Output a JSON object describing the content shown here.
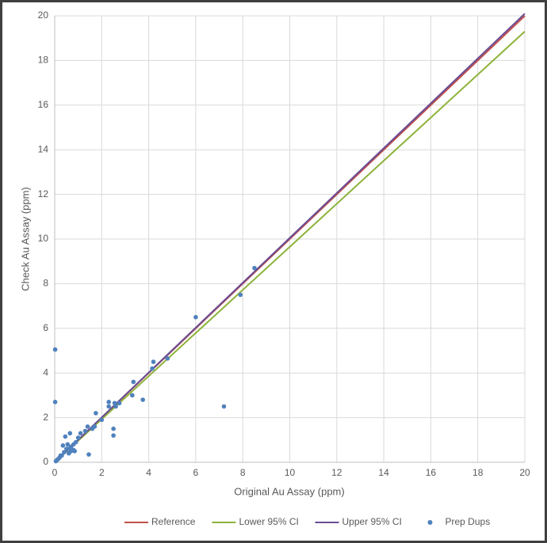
{
  "chart_data": {
    "type": "scatter",
    "x_label": "Original Au Assay (ppm)",
    "y_label": "Check Au Assay (ppm)",
    "xlim": [
      0,
      20
    ],
    "ylim": [
      0,
      20
    ],
    "xticks": [
      0,
      2,
      4,
      6,
      8,
      10,
      12,
      14,
      16,
      18,
      20
    ],
    "yticks": [
      0,
      2,
      4,
      6,
      8,
      10,
      12,
      14,
      16,
      18,
      20
    ],
    "grid": true,
    "legend": "bottom",
    "series": [
      {
        "name": "Reference",
        "color": "#c0504d",
        "style": "line",
        "x": [
          0,
          20
        ],
        "values": [
          0,
          20
        ]
      },
      {
        "name": "Lower 95% CI",
        "color": "#8db33a",
        "style": "line",
        "x": [
          0,
          20
        ],
        "values": [
          0,
          19.3
        ]
      },
      {
        "name": "Upper 95% CI",
        "color": "#6a4c93",
        "style": "line",
        "x": [
          0,
          20
        ],
        "values": [
          0,
          20.1
        ]
      },
      {
        "name": "Prep Dups",
        "color": "#4f81bd",
        "style": "marker",
        "x": [
          0.02,
          0.02,
          8.5,
          7.9,
          6.0,
          7.2,
          4.8,
          4.2,
          4.15,
          3.75,
          3.35,
          3.3,
          2.75,
          2.6,
          2.55,
          2.5,
          2.5,
          2.3,
          2.3,
          2.0,
          1.75,
          1.7,
          1.6,
          1.45,
          1.4,
          1.3,
          1.1,
          1.0,
          0.9,
          0.85,
          0.8,
          0.7,
          0.65,
          0.6,
          0.55,
          0.5,
          0.45,
          0.4,
          0.35,
          0.3,
          0.25,
          0.2,
          0.15,
          0.1,
          0.05,
          0.7,
          0.6,
          0.8
        ],
        "values": [
          5.05,
          2.7,
          8.7,
          7.5,
          6.5,
          2.5,
          4.65,
          4.5,
          4.2,
          2.8,
          3.6,
          3.0,
          2.65,
          2.5,
          2.65,
          1.5,
          1.2,
          2.7,
          2.5,
          1.9,
          2.2,
          1.6,
          1.5,
          0.35,
          1.6,
          1.4,
          1.3,
          1.1,
          0.9,
          0.5,
          0.8,
          0.7,
          1.3,
          0.4,
          0.8,
          0.6,
          1.15,
          0.45,
          0.75,
          0.3,
          0.3,
          0.2,
          0.15,
          0.1,
          0.05,
          0.5,
          0.6,
          0.55
        ]
      }
    ]
  }
}
